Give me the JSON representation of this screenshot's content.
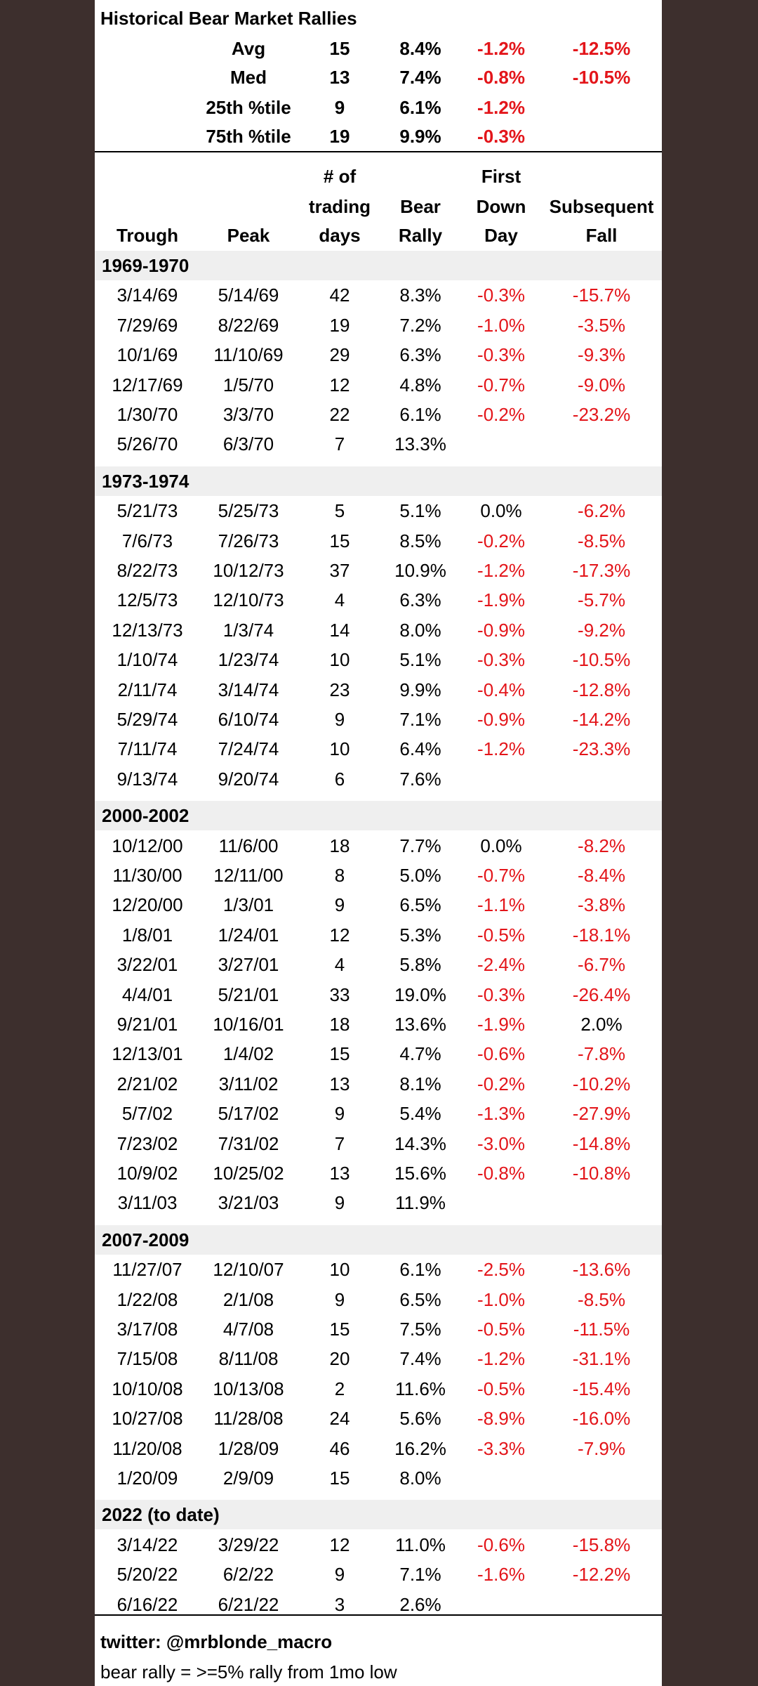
{
  "title": "Historical Bear Market Rallies",
  "summary": [
    {
      "label": "Avg",
      "days": "15",
      "rally": "8.4%",
      "first_down": "-1.2%",
      "subsequent": "-12.5%"
    },
    {
      "label": "Med",
      "days": "13",
      "rally": "7.4%",
      "first_down": "-0.8%",
      "subsequent": "-10.5%"
    },
    {
      "label": "25th %tile",
      "days": "9",
      "rally": "6.1%",
      "first_down": "-1.2%"
    },
    {
      "label": "75th %tile",
      "days": "19",
      "rally": "9.9%",
      "first_down": "-0.3%"
    }
  ],
  "header": [
    [
      "Trough"
    ],
    [
      "Peak"
    ],
    [
      "# of",
      "trading",
      "days"
    ],
    [
      "Bear",
      "Rally"
    ],
    [
      "First",
      "Down",
      "Day"
    ],
    [
      "Subsequent",
      "Fall"
    ]
  ],
  "sections": [
    {
      "period": "1969-1970",
      "rows": [
        [
          "3/14/69",
          "5/14/69",
          "42",
          "8.3%",
          "-0.3%",
          "-15.7%"
        ],
        [
          "7/29/69",
          "8/22/69",
          "19",
          "7.2%",
          "-1.0%",
          "-3.5%"
        ],
        [
          "10/1/69",
          "11/10/69",
          "29",
          "6.3%",
          "-0.3%",
          "-9.3%"
        ],
        [
          "12/17/69",
          "1/5/70",
          "12",
          "4.8%",
          "-0.7%",
          "-9.0%"
        ],
        [
          "1/30/70",
          "3/3/70",
          "22",
          "6.1%",
          "-0.2%",
          "-23.2%"
        ],
        [
          "5/26/70",
          "6/3/70",
          "7",
          "13.3%"
        ]
      ]
    },
    {
      "period": "1973-1974",
      "rows": [
        [
          "5/21/73",
          "5/25/73",
          "5",
          "5.1%",
          "0.0%",
          "-6.2%"
        ],
        [
          "7/6/73",
          "7/26/73",
          "15",
          "8.5%",
          "-0.2%",
          "-8.5%"
        ],
        [
          "8/22/73",
          "10/12/73",
          "37",
          "10.9%",
          "-1.2%",
          "-17.3%"
        ],
        [
          "12/5/73",
          "12/10/73",
          "4",
          "6.3%",
          "-1.9%",
          "-5.7%"
        ],
        [
          "12/13/73",
          "1/3/74",
          "14",
          "8.0%",
          "-0.9%",
          "-9.2%"
        ],
        [
          "1/10/74",
          "1/23/74",
          "10",
          "5.1%",
          "-0.3%",
          "-10.5%"
        ],
        [
          "2/11/74",
          "3/14/74",
          "23",
          "9.9%",
          "-0.4%",
          "-12.8%"
        ],
        [
          "5/29/74",
          "6/10/74",
          "9",
          "7.1%",
          "-0.9%",
          "-14.2%"
        ],
        [
          "7/11/74",
          "7/24/74",
          "10",
          "6.4%",
          "-1.2%",
          "-23.3%"
        ],
        [
          "9/13/74",
          "9/20/74",
          "6",
          "7.6%"
        ]
      ]
    },
    {
      "period": "2000-2002",
      "rows": [
        [
          "10/12/00",
          "11/6/00",
          "18",
          "7.7%",
          "0.0%",
          "-8.2%"
        ],
        [
          "11/30/00",
          "12/11/00",
          "8",
          "5.0%",
          "-0.7%",
          "-8.4%"
        ],
        [
          "12/20/00",
          "1/3/01",
          "9",
          "6.5%",
          "-1.1%",
          "-3.8%"
        ],
        [
          "1/8/01",
          "1/24/01",
          "12",
          "5.3%",
          "-0.5%",
          "-18.1%"
        ],
        [
          "3/22/01",
          "3/27/01",
          "4",
          "5.8%",
          "-2.4%",
          "-6.7%"
        ],
        [
          "4/4/01",
          "5/21/01",
          "33",
          "19.0%",
          "-0.3%",
          "-26.4%"
        ],
        [
          "9/21/01",
          "10/16/01",
          "18",
          "13.6%",
          "-1.9%",
          "2.0%"
        ],
        [
          "12/13/01",
          "1/4/02",
          "15",
          "4.7%",
          "-0.6%",
          "-7.8%"
        ],
        [
          "2/21/02",
          "3/11/02",
          "13",
          "8.1%",
          "-0.2%",
          "-10.2%"
        ],
        [
          "5/7/02",
          "5/17/02",
          "9",
          "5.4%",
          "-1.3%",
          "-27.9%"
        ],
        [
          "7/23/02",
          "7/31/02",
          "7",
          "14.3%",
          "-3.0%",
          "-14.8%"
        ],
        [
          "10/9/02",
          "10/25/02",
          "13",
          "15.6%",
          "-0.8%",
          "-10.8%"
        ],
        [
          "3/11/03",
          "3/21/03",
          "9",
          "11.9%"
        ]
      ]
    },
    {
      "period": "2007-2009",
      "rows": [
        [
          "11/27/07",
          "12/10/07",
          "10",
          "6.1%",
          "-2.5%",
          "-13.6%"
        ],
        [
          "1/22/08",
          "2/1/08",
          "9",
          "6.5%",
          "-1.0%",
          "-8.5%"
        ],
        [
          "3/17/08",
          "4/7/08",
          "15",
          "7.5%",
          "-0.5%",
          "-11.5%"
        ],
        [
          "7/15/08",
          "8/11/08",
          "20",
          "7.4%",
          "-1.2%",
          "-31.1%"
        ],
        [
          "10/10/08",
          "10/13/08",
          "2",
          "11.6%",
          "-0.5%",
          "-15.4%"
        ],
        [
          "10/27/08",
          "11/28/08",
          "24",
          "5.6%",
          "-8.9%",
          "-16.0%"
        ],
        [
          "11/20/08",
          "1/28/09",
          "46",
          "16.2%",
          "-3.3%",
          "-7.9%"
        ],
        [
          "1/20/09",
          "2/9/09",
          "15",
          "8.0%"
        ]
      ]
    },
    {
      "period": "2022 (to date)",
      "rows": [
        [
          "3/14/22",
          "3/29/22",
          "12",
          "11.0%",
          "-0.6%",
          "-15.8%"
        ],
        [
          "5/20/22",
          "6/2/22",
          "9",
          "7.1%",
          "-1.6%",
          "-12.2%"
        ],
        [
          "6/16/22",
          "6/21/22",
          "3",
          "2.6%"
        ]
      ]
    }
  ],
  "footer": {
    "credit": "twitter: @mrblonde_macro",
    "note": "bear rally = >=5% rally from 1mo low"
  }
}
